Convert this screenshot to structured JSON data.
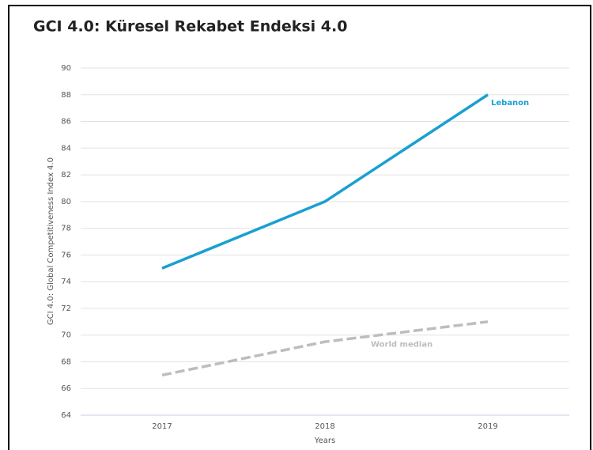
{
  "chart_data": {
    "type": "line",
    "title": "GCI 4.0: Küresel Rekabet Endeksi 4.0",
    "x_label": "Years",
    "y_label": "GCI 4.0: Global Competitiveness Index 4.0",
    "categories": [
      "2017",
      "2018",
      "2019"
    ],
    "series": [
      {
        "name": "Lebanon",
        "color": "#1a9fd1",
        "dashed": false,
        "values": [
          75,
          80,
          88
        ]
      },
      {
        "name": "World median",
        "color": "#bdbdbd",
        "dashed": true,
        "values": [
          67,
          69.5,
          71
        ]
      }
    ],
    "ylim": [
      64,
      90
    ],
    "yticks": [
      64,
      66,
      68,
      70,
      72,
      74,
      76,
      78,
      80,
      82,
      84,
      86,
      88,
      90
    ],
    "grid": true
  }
}
